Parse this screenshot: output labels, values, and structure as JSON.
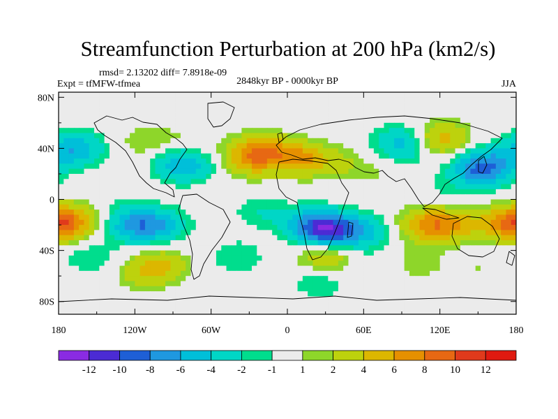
{
  "chart_data": {
    "type": "heatmap",
    "title": "Streamfunction Perturbation at 200 hPa (km2/s)",
    "stats_text": "rmsd= 2.13202 diff= 7.8918e-09",
    "experiment": "Expt = tfMFW-tfmea",
    "period": "2848kyr BP - 0000kyr BP",
    "season": "JJA",
    "xlim": [
      -180,
      180
    ],
    "ylim": [
      -90,
      90
    ],
    "x_ticks": [
      {
        "value": -180,
        "label": "180"
      },
      {
        "value": -120,
        "label": "120W"
      },
      {
        "value": -60,
        "label": "60W"
      },
      {
        "value": 0,
        "label": "0"
      },
      {
        "value": 60,
        "label": "60E"
      },
      {
        "value": 120,
        "label": "120E"
      },
      {
        "value": 180,
        "label": "180"
      }
    ],
    "y_ticks": [
      {
        "value": 80,
        "label": "80N"
      },
      {
        "value": 40,
        "label": "40N"
      },
      {
        "value": 0,
        "label": "0"
      },
      {
        "value": -40,
        "label": "40S"
      },
      {
        "value": -80,
        "label": "80S"
      }
    ],
    "colorbar": {
      "colors": [
        "#8a2be2",
        "#4b2bd4",
        "#1e5fd6",
        "#1f98e0",
        "#00bfd9",
        "#00d6c6",
        "#00dd8d",
        "#ebebeb",
        "#8ed62a",
        "#bdd20d",
        "#dcb700",
        "#e69000",
        "#e76813",
        "#e03a1c",
        "#e01a10"
      ],
      "labels": [
        "-12",
        "-10",
        "-8",
        "-6",
        "-4",
        "-2",
        "-1",
        "1",
        "2",
        "4",
        "6",
        "8",
        "10",
        "12"
      ]
    },
    "field_level_index": {
      "-12": 0,
      "-10": 1,
      "-8": 2,
      "-6": 3,
      "-4": 4,
      "-2": 5,
      "-1": 6,
      "0": 7,
      "1": 8,
      "2": 9,
      "4": 10,
      "6": 11,
      "8": 12,
      "10": 13,
      "12": 14
    },
    "anomalies": [
      {
        "lon": -165,
        "lat": 40,
        "value": -4
      },
      {
        "lon": -175,
        "lat": 38,
        "value": -2
      },
      {
        "lon": -140,
        "lat": 0,
        "value": -1
      },
      {
        "lon": -155,
        "lat": -5,
        "value": 1
      },
      {
        "lon": -180,
        "lat": -18,
        "value": 6
      },
      {
        "lon": -172,
        "lat": -20,
        "value": 4
      },
      {
        "lon": -120,
        "lat": -20,
        "value": -6
      },
      {
        "lon": -100,
        "lat": -20,
        "value": -4
      },
      {
        "lon": -155,
        "lat": -45,
        "value": -2
      },
      {
        "lon": -100,
        "lat": -52,
        "value": 4
      },
      {
        "lon": -115,
        "lat": -60,
        "value": 2
      },
      {
        "lon": -85,
        "lat": 28,
        "value": -4
      },
      {
        "lon": -75,
        "lat": 25,
        "value": -2
      },
      {
        "lon": -110,
        "lat": 45,
        "value": 2
      },
      {
        "lon": -75,
        "lat": 48,
        "value": 1
      },
      {
        "lon": -70,
        "lat": 75,
        "value": -1
      },
      {
        "lon": -20,
        "lat": 38,
        "value": 6
      },
      {
        "lon": 10,
        "lat": 32,
        "value": 6
      },
      {
        "lon": -30,
        "lat": 30,
        "value": 4
      },
      {
        "lon": 40,
        "lat": 28,
        "value": 2
      },
      {
        "lon": -20,
        "lat": -10,
        "value": -2
      },
      {
        "lon": 20,
        "lat": -20,
        "value": -6
      },
      {
        "lon": 35,
        "lat": -25,
        "value": -8
      },
      {
        "lon": 60,
        "lat": -25,
        "value": -4
      },
      {
        "lon": -40,
        "lat": -45,
        "value": -2
      },
      {
        "lon": 30,
        "lat": -45,
        "value": 4
      },
      {
        "lon": 25,
        "lat": -65,
        "value": -2
      },
      {
        "lon": 75,
        "lat": -50,
        "value": -1
      },
      {
        "lon": 90,
        "lat": 45,
        "value": -4
      },
      {
        "lon": 100,
        "lat": 40,
        "value": -2
      },
      {
        "lon": 70,
        "lat": 20,
        "value": 1
      },
      {
        "lon": 115,
        "lat": 45,
        "value": 4
      },
      {
        "lon": 125,
        "lat": 50,
        "value": 2
      },
      {
        "lon": 150,
        "lat": 22,
        "value": -6
      },
      {
        "lon": 160,
        "lat": 28,
        "value": -4
      },
      {
        "lon": 120,
        "lat": 5,
        "value": -1
      },
      {
        "lon": 110,
        "lat": -20,
        "value": 6
      },
      {
        "lon": 130,
        "lat": -20,
        "value": 4
      },
      {
        "lon": 160,
        "lat": -20,
        "value": 2
      },
      {
        "lon": 100,
        "lat": -50,
        "value": 2
      },
      {
        "lon": 150,
        "lat": -55,
        "value": 1
      }
    ]
  }
}
